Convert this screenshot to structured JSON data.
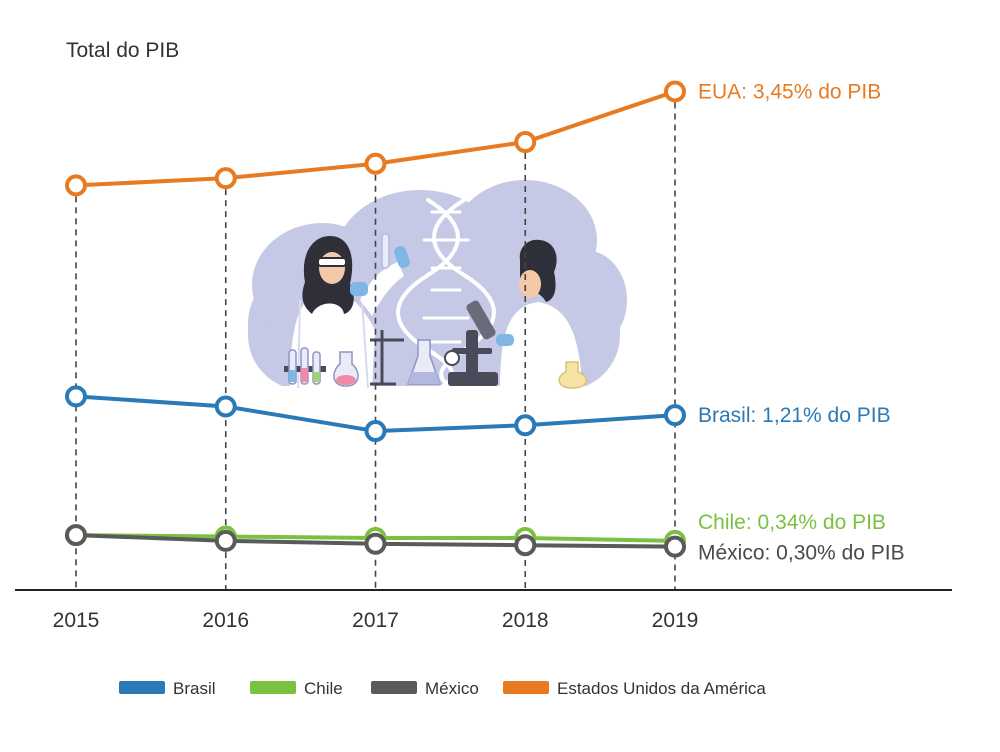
{
  "chart_data": {
    "type": "line",
    "title": "Total do PIB",
    "categories": [
      "2015",
      "2016",
      "2017",
      "2018",
      "2019"
    ],
    "ylim": [
      0,
      4.0
    ],
    "grid": false,
    "series": [
      {
        "name": "Estados Unidos da América",
        "color": "#e87b22",
        "values": [
          2.8,
          2.85,
          2.95,
          3.1,
          3.45
        ],
        "end_label": "EUA: 3,45% do PIB"
      },
      {
        "name": "Brasil",
        "color": "#2a7ab8",
        "values": [
          1.34,
          1.27,
          1.1,
          1.14,
          1.21
        ],
        "end_label": "Brasil: 1,21% do PIB"
      },
      {
        "name": "Chile",
        "color": "#7ac142",
        "values": [
          0.38,
          0.37,
          0.36,
          0.36,
          0.34
        ],
        "end_label": "Chile: 0,34% do PIB"
      },
      {
        "name": "México",
        "color": "#5a5a5a",
        "values": [
          0.38,
          0.34,
          0.32,
          0.31,
          0.3
        ],
        "end_label": "México: 0,30% do PIB"
      }
    ],
    "legend": {
      "placement": "bottom",
      "order": [
        "Brasil",
        "Chile",
        "México",
        "Estados Unidos da América"
      ]
    }
  },
  "illustration": {
    "subject": "scientists-in-laboratory",
    "colors": {
      "cloud": "#c5c9e6",
      "coat": "#ffffff",
      "hair": "#2f2f3a",
      "glove": "#7fb6e6",
      "dna": "#ffffff"
    }
  }
}
